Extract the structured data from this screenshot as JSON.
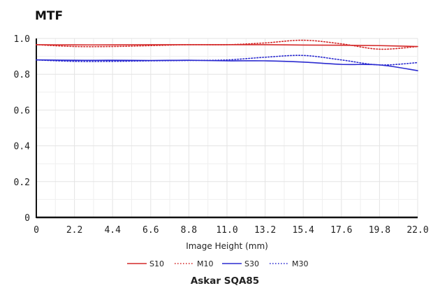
{
  "chart_data": {
    "type": "line",
    "title": "MTF",
    "subtitle": "Askar SQA85",
    "xlabel": "Image Height (mm)",
    "ylabel": "",
    "xlim": [
      0,
      22
    ],
    "ylim": [
      0,
      1
    ],
    "x_ticks": [
      "0",
      "2.2",
      "4.4",
      "6.6",
      "8.8",
      "11.0",
      "13.2",
      "15.4",
      "17.6",
      "19.8",
      "22.0"
    ],
    "y_ticks": [
      "0",
      "0.2",
      "0.4",
      "0.6",
      "0.8",
      "1.0"
    ],
    "grid": true,
    "legend": "bottom",
    "series": [
      {
        "name": "S10",
        "color": "#d42a2a",
        "style": "solid",
        "x": [
          0,
          2.2,
          4.4,
          6.6,
          8.8,
          11.0,
          13.2,
          15.4,
          17.6,
          19.8,
          22.0
        ],
        "y": [
          0.965,
          0.964,
          0.964,
          0.965,
          0.965,
          0.965,
          0.965,
          0.963,
          0.962,
          0.96,
          0.955
        ]
      },
      {
        "name": "M10",
        "color": "#d42a2a",
        "style": "dotted",
        "x": [
          0,
          2.2,
          4.4,
          6.6,
          8.8,
          11.0,
          13.2,
          15.4,
          17.6,
          19.8,
          22.0
        ],
        "y": [
          0.965,
          0.955,
          0.955,
          0.96,
          0.965,
          0.965,
          0.975,
          0.99,
          0.97,
          0.94,
          0.955
        ]
      },
      {
        "name": "S30",
        "color": "#2b2bd0",
        "style": "solid",
        "x": [
          0,
          2.2,
          4.4,
          6.6,
          8.8,
          11.0,
          13.2,
          15.4,
          17.6,
          19.8,
          22.0
        ],
        "y": [
          0.88,
          0.878,
          0.878,
          0.877,
          0.878,
          0.875,
          0.875,
          0.868,
          0.855,
          0.852,
          0.82
        ]
      },
      {
        "name": "M30",
        "color": "#2b2bd0",
        "style": "dotted",
        "x": [
          0,
          2.2,
          4.4,
          6.6,
          8.8,
          11.0,
          13.2,
          15.4,
          17.6,
          19.8,
          22.0
        ],
        "y": [
          0.88,
          0.872,
          0.872,
          0.875,
          0.877,
          0.88,
          0.895,
          0.905,
          0.88,
          0.852,
          0.865
        ]
      }
    ]
  }
}
